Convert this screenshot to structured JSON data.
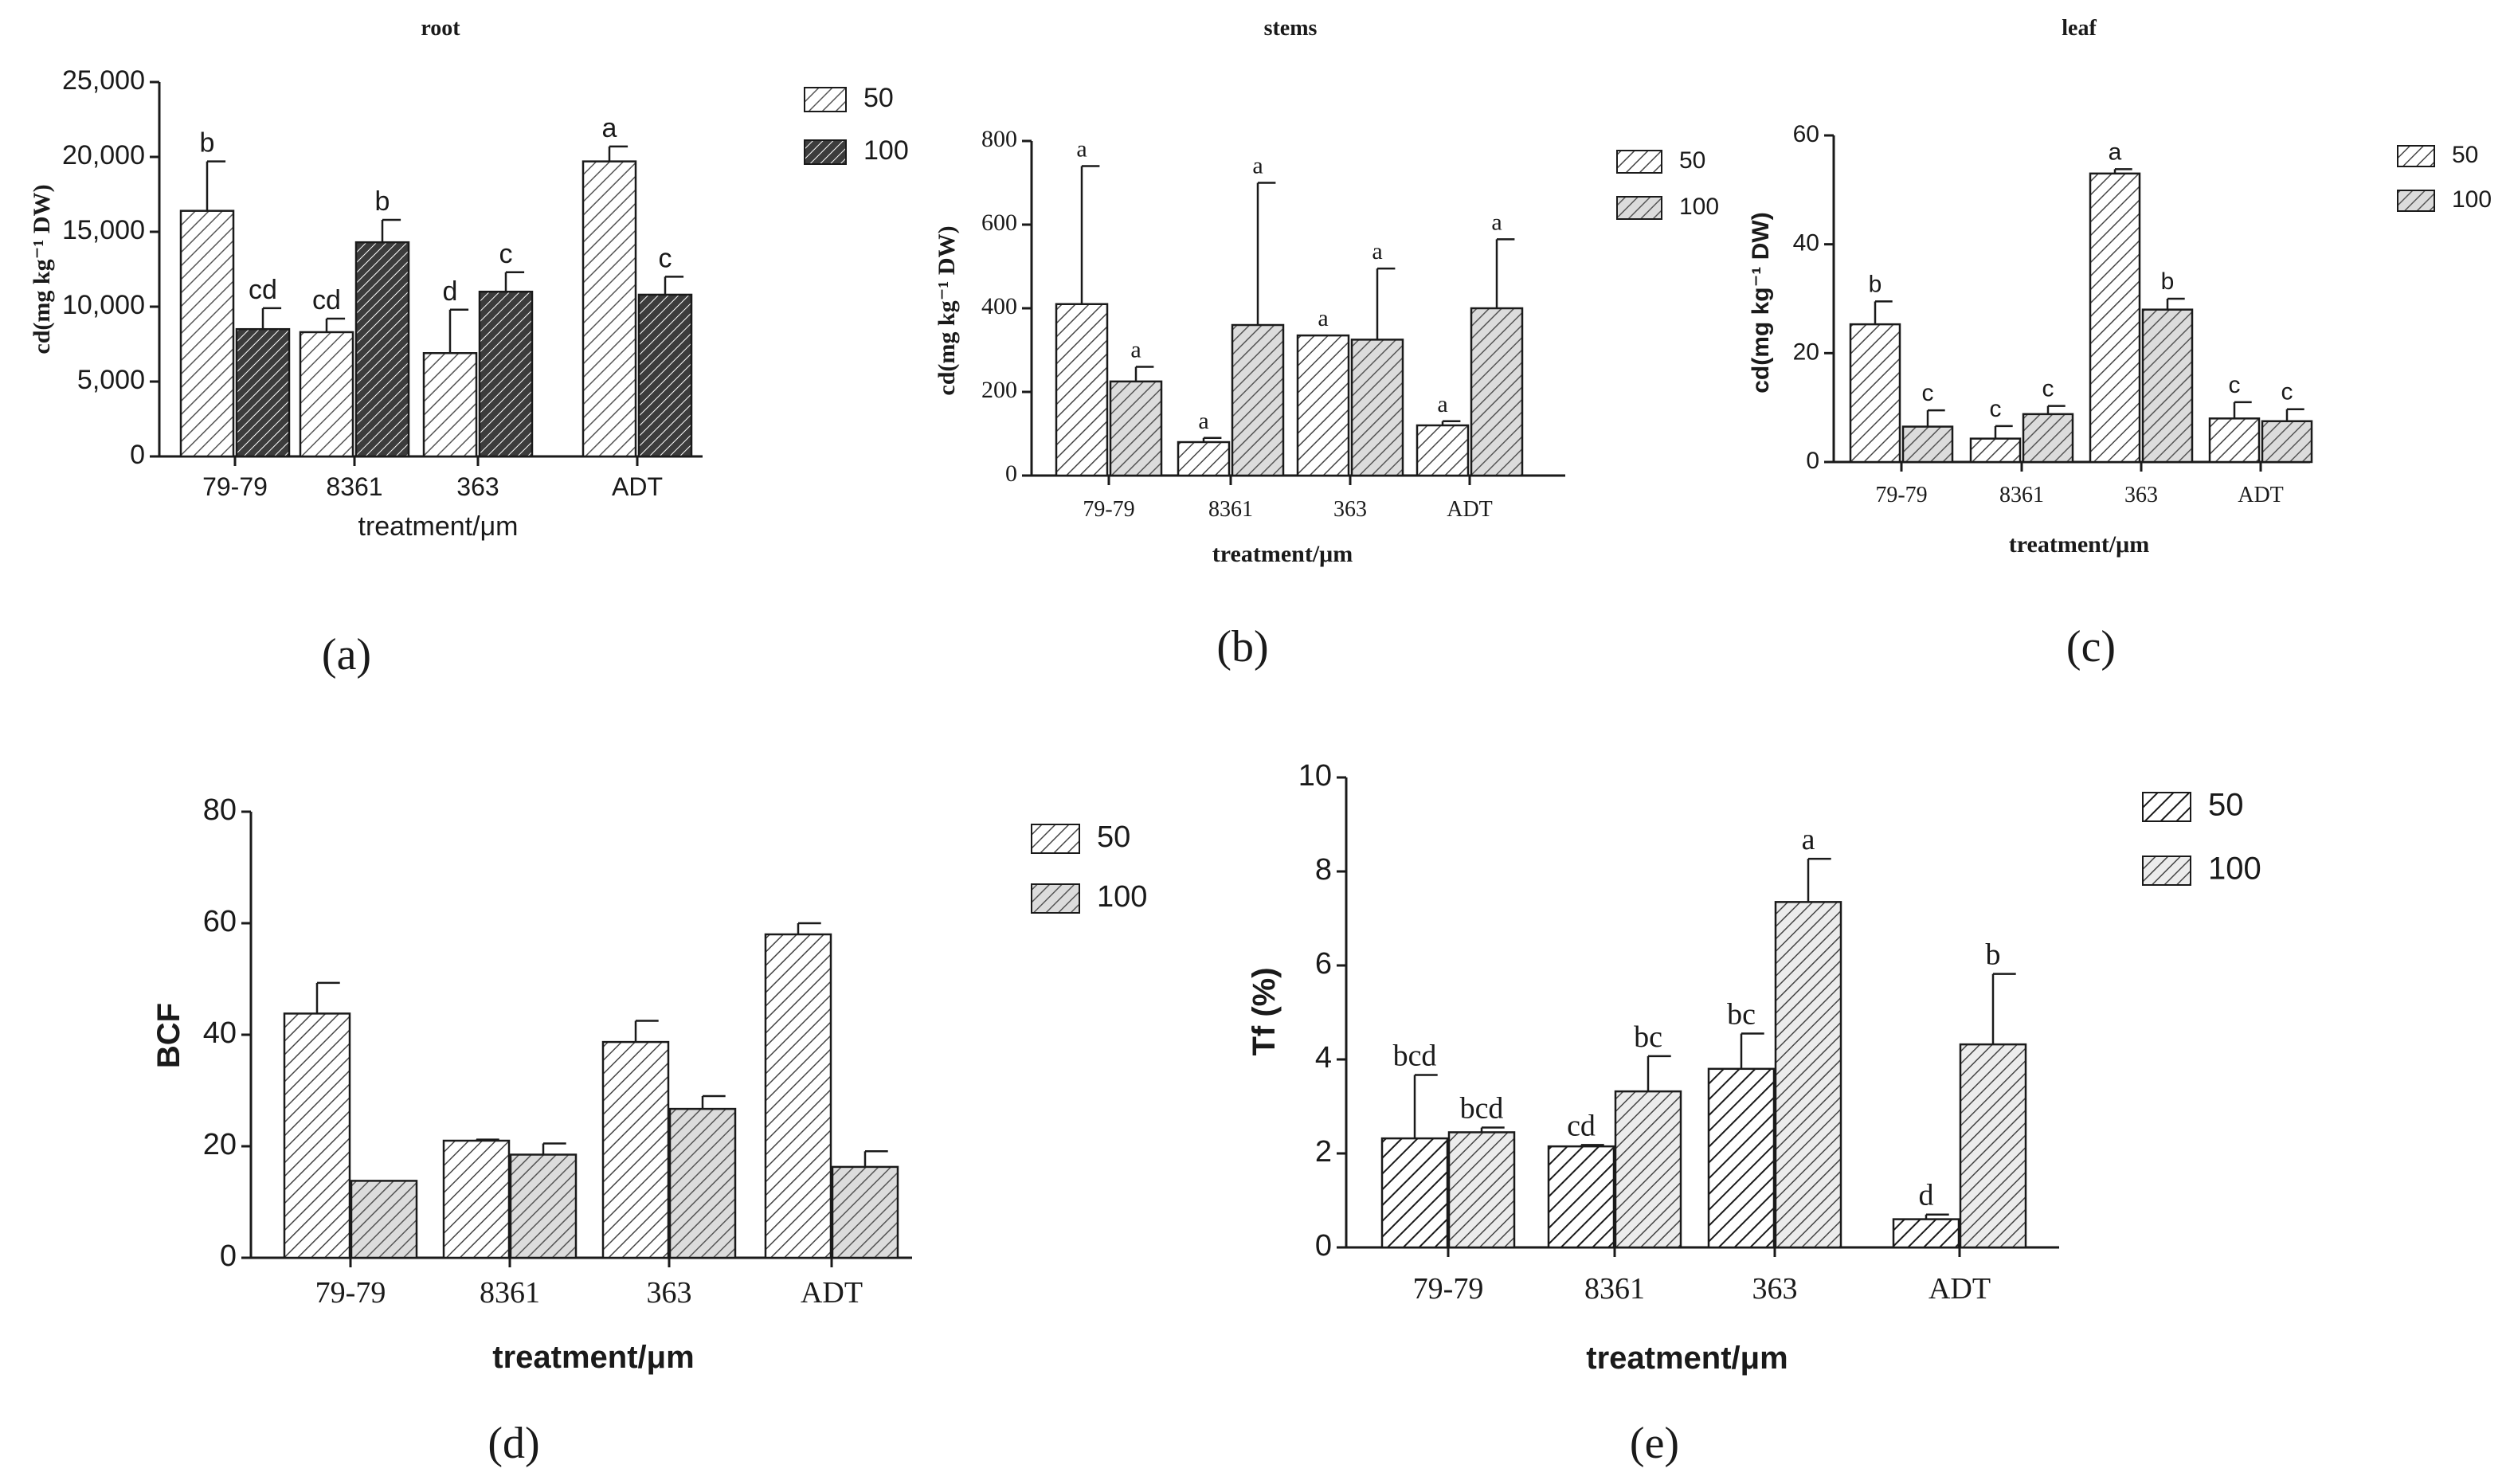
{
  "figure": {
    "panels": [
      "(a)",
      "(b)",
      "(c)",
      "(d)",
      "(e)"
    ]
  },
  "colors": {
    "axis": "#1a1a1a",
    "bar_fill": "#ffffff",
    "hatch_light": "#505050",
    "hatch_dark": "#202020",
    "text": "#1a1a1a"
  },
  "chart_data": [
    {
      "id": "a",
      "type": "bar",
      "panel_label": "(a)",
      "title": "root",
      "xlabel": "treatment/μm",
      "ylabel": "cd(mg kg⁻¹ DW)",
      "categories": [
        "79-79",
        "8361",
        "363",
        "ADT"
      ],
      "ylim": [
        0,
        25000
      ],
      "yticks": [
        0,
        5000,
        10000,
        15000,
        20000,
        25000
      ],
      "ytick_labels": [
        "0",
        "5,000",
        "10,000",
        "15,000",
        "20,000",
        "25,000"
      ],
      "legend": [
        "50",
        "100"
      ],
      "legend_position": "top-right",
      "series": [
        {
          "name": "50",
          "values": [
            16400,
            8300,
            6900,
            19700
          ],
          "errors": [
            3300,
            900,
            2900,
            1000
          ],
          "letters": [
            "b",
            "cd",
            "d",
            "a"
          ]
        },
        {
          "name": "100",
          "values": [
            8500,
            14300,
            11000,
            10800
          ],
          "errors": [
            1400,
            1500,
            1300,
            1200
          ],
          "letters": [
            "cd",
            "b",
            "c",
            "c"
          ]
        }
      ]
    },
    {
      "id": "b",
      "type": "bar",
      "panel_label": "(b)",
      "title": "stems",
      "xlabel": "treatment/μm",
      "ylabel": "cd(mg kg⁻¹ DW)",
      "categories": [
        "79-79",
        "8361",
        "363",
        "ADT"
      ],
      "ylim": [
        0,
        800
      ],
      "yticks": [
        0,
        200,
        400,
        600,
        800
      ],
      "ytick_labels": [
        "0",
        "200",
        "400",
        "600",
        "800"
      ],
      "legend": [
        "50",
        "100"
      ],
      "legend_position": "top-right",
      "series": [
        {
          "name": "50",
          "values": [
            410,
            80,
            335,
            120
          ],
          "errors": [
            330,
            10,
            0,
            10
          ],
          "letters": [
            "a",
            "a",
            "a",
            "a"
          ]
        },
        {
          "name": "100",
          "values": [
            225,
            360,
            325,
            400
          ],
          "errors": [
            35,
            340,
            170,
            165
          ],
          "letters": [
            "a",
            "a",
            "a",
            "a"
          ]
        }
      ]
    },
    {
      "id": "c",
      "type": "bar",
      "panel_label": "(c)",
      "title": "leaf",
      "xlabel": "treatment/μm",
      "ylabel": "cd(mg kg⁻¹ DW)",
      "categories": [
        "79-79",
        "8361",
        "363",
        "ADT"
      ],
      "ylim": [
        0,
        60
      ],
      "yticks": [
        0,
        20,
        40,
        60
      ],
      "ytick_labels": [
        "0",
        "20",
        "40",
        "60"
      ],
      "legend": [
        "50",
        "100"
      ],
      "legend_position": "top-right",
      "series": [
        {
          "name": "50",
          "values": [
            25.3,
            4.3,
            53,
            8
          ],
          "errors": [
            4.2,
            2.3,
            0.8,
            3
          ],
          "letters": [
            "b",
            "c",
            "a",
            "c"
          ]
        },
        {
          "name": "100",
          "values": [
            6.5,
            8.8,
            28,
            7.5
          ],
          "errors": [
            3,
            1.5,
            2,
            2.2
          ],
          "letters": [
            "c",
            "c",
            "b",
            "c"
          ]
        }
      ]
    },
    {
      "id": "d",
      "type": "bar",
      "panel_label": "(d)",
      "title": "",
      "xlabel": "treatment/μm",
      "ylabel": "BCF",
      "categories": [
        "79-79",
        "8361",
        "363",
        "ADT"
      ],
      "ylim": [
        0,
        80
      ],
      "yticks": [
        0,
        20,
        40,
        60,
        80
      ],
      "ytick_labels": [
        "0",
        "20",
        "40",
        "60",
        "80"
      ],
      "legend": [
        "50",
        "100"
      ],
      "legend_position": "top-right",
      "series": [
        {
          "name": "50",
          "values": [
            43.8,
            21,
            38.7,
            58
          ],
          "errors": [
            5.5,
            0.2,
            3.8,
            2
          ],
          "letters": [
            "",
            "",
            "",
            ""
          ]
        },
        {
          "name": "100",
          "values": [
            13.8,
            18.5,
            26.7,
            16.3
          ],
          "errors": [
            0,
            2,
            2.3,
            2.8
          ],
          "letters": [
            "",
            "",
            "",
            ""
          ]
        }
      ]
    },
    {
      "id": "e",
      "type": "bar",
      "panel_label": "(e)",
      "title": "",
      "xlabel": "treatment/μm",
      "ylabel": "Tf (%)",
      "categories": [
        "79-79",
        "8361",
        "363",
        "ADT"
      ],
      "ylim": [
        0,
        10
      ],
      "yticks": [
        0,
        2,
        4,
        6,
        8,
        10
      ],
      "ytick_labels": [
        "0",
        "2",
        "4",
        "6",
        "8",
        "10"
      ],
      "legend": [
        "50",
        "100"
      ],
      "legend_position": "top-right",
      "series": [
        {
          "name": "50",
          "values": [
            2.32,
            2.15,
            3.8,
            0.6
          ],
          "errors": [
            1.35,
            0.03,
            0.75,
            0.1
          ],
          "letters": [
            "bcd",
            "cd",
            "bc",
            "d"
          ]
        },
        {
          "name": "100",
          "values": [
            2.45,
            3.32,
            7.35,
            4.32
          ],
          "errors": [
            0.1,
            0.75,
            0.92,
            1.5
          ],
          "letters": [
            "bcd",
            "bc",
            "a",
            "b"
          ]
        }
      ]
    }
  ]
}
